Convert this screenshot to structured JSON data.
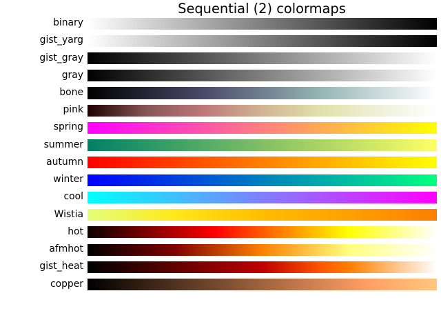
{
  "title": "Sequential (2) colormaps",
  "chart_data": {
    "type": "heatmap",
    "title": "Sequential (2) colormaps",
    "description": "Horizontal gradient swatches, one per matplotlib colormap, labels on the left",
    "rows": [
      {
        "label": "binary",
        "gradient": [
          {
            "pos": 0,
            "color": "#ffffff"
          },
          {
            "pos": 100,
            "color": "#000000"
          }
        ]
      },
      {
        "label": "gist_yarg",
        "gradient": [
          {
            "pos": 0,
            "color": "#ffffff"
          },
          {
            "pos": 100,
            "color": "#000000"
          }
        ]
      },
      {
        "label": "gist_gray",
        "gradient": [
          {
            "pos": 0,
            "color": "#000000"
          },
          {
            "pos": 100,
            "color": "#ffffff"
          }
        ]
      },
      {
        "label": "gray",
        "gradient": [
          {
            "pos": 0,
            "color": "#000000"
          },
          {
            "pos": 100,
            "color": "#ffffff"
          }
        ]
      },
      {
        "label": "bone",
        "gradient": [
          {
            "pos": 0,
            "color": "#000000"
          },
          {
            "pos": 33.3,
            "color": "#4a4a6a"
          },
          {
            "pos": 66.7,
            "color": "#95b5b5"
          },
          {
            "pos": 100,
            "color": "#ffffff"
          }
        ]
      },
      {
        "label": "pink",
        "gradient": [
          {
            "pos": 0,
            "color": "#1e0000"
          },
          {
            "pos": 16.7,
            "color": "#865555"
          },
          {
            "pos": 33.3,
            "color": "#be7878"
          },
          {
            "pos": 50,
            "color": "#d0b493"
          },
          {
            "pos": 66.7,
            "color": "#e1e1aa"
          },
          {
            "pos": 83.3,
            "color": "#f0f0d9"
          },
          {
            "pos": 100,
            "color": "#ffffff"
          }
        ]
      },
      {
        "label": "spring",
        "gradient": [
          {
            "pos": 0,
            "color": "#ff00ff"
          },
          {
            "pos": 100,
            "color": "#ffff00"
          }
        ]
      },
      {
        "label": "summer",
        "gradient": [
          {
            "pos": 0,
            "color": "#008066"
          },
          {
            "pos": 100,
            "color": "#ffff66"
          }
        ]
      },
      {
        "label": "autumn",
        "gradient": [
          {
            "pos": 0,
            "color": "#ff0000"
          },
          {
            "pos": 100,
            "color": "#ffff00"
          }
        ]
      },
      {
        "label": "winter",
        "gradient": [
          {
            "pos": 0,
            "color": "#0000ff"
          },
          {
            "pos": 100,
            "color": "#00ff80"
          }
        ]
      },
      {
        "label": "cool",
        "gradient": [
          {
            "pos": 0,
            "color": "#00ffff"
          },
          {
            "pos": 100,
            "color": "#ff00ff"
          }
        ]
      },
      {
        "label": "Wistia",
        "gradient": [
          {
            "pos": 0,
            "color": "#e4ff7a"
          },
          {
            "pos": 25,
            "color": "#ffe81a"
          },
          {
            "pos": 50,
            "color": "#ffbd00"
          },
          {
            "pos": 75,
            "color": "#ffa000"
          },
          {
            "pos": 100,
            "color": "#fc7f00"
          }
        ]
      },
      {
        "label": "hot",
        "gradient": [
          {
            "pos": 0,
            "color": "#0b0000"
          },
          {
            "pos": 36.5,
            "color": "#ff0000"
          },
          {
            "pos": 74.6,
            "color": "#ffff00"
          },
          {
            "pos": 100,
            "color": "#ffffff"
          }
        ]
      },
      {
        "label": "afmhot",
        "gradient": [
          {
            "pos": 0,
            "color": "#000000"
          },
          {
            "pos": 25,
            "color": "#800000"
          },
          {
            "pos": 50,
            "color": "#ff8000"
          },
          {
            "pos": 75,
            "color": "#ffff80"
          },
          {
            "pos": 100,
            "color": "#ffffff"
          }
        ]
      },
      {
        "label": "gist_heat",
        "gradient": [
          {
            "pos": 0,
            "color": "#000000"
          },
          {
            "pos": 50,
            "color": "#bf0000"
          },
          {
            "pos": 66.7,
            "color": "#ff5500"
          },
          {
            "pos": 75,
            "color": "#ff8000"
          },
          {
            "pos": 100,
            "color": "#ffffff"
          }
        ]
      },
      {
        "label": "copper",
        "gradient": [
          {
            "pos": 0,
            "color": "#000000"
          },
          {
            "pos": 80,
            "color": "#ff9f65"
          },
          {
            "pos": 100,
            "color": "#ffc77f"
          }
        ]
      }
    ],
    "layout": {
      "background": "#ffffff",
      "text_color": "#000000",
      "row_count": 16,
      "legend": "none",
      "grid": false
    }
  }
}
